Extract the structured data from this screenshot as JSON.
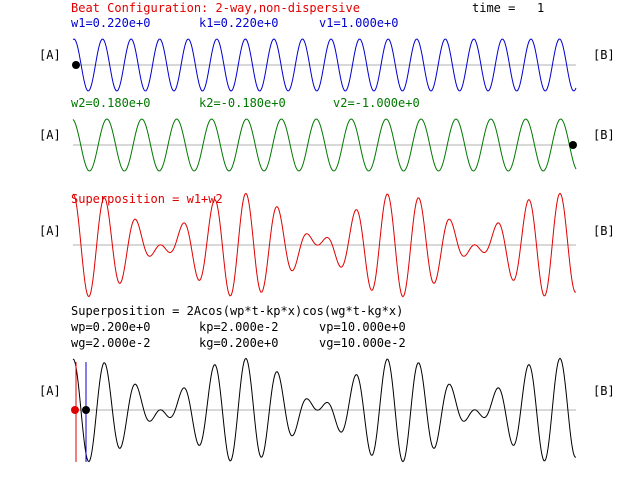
{
  "header": {
    "title": "Beat Configuration: 2-way,non-dispersive",
    "time_label": "time =   1"
  },
  "wave1": {
    "params": [
      "w1=0.220e+0",
      "k1=0.220e+0",
      "v1=1.000e+0"
    ],
    "left_label": "[A]",
    "right_label": "[B]"
  },
  "wave2": {
    "params": [
      "w2=0.180e+0",
      "k2=-0.180e+0",
      "v2=-1.000e+0"
    ],
    "left_label": "[A]",
    "right_label": "[B]"
  },
  "superposition": {
    "title": "Superposition = w1+w2",
    "left_label": "[A]",
    "right_label": "[B]"
  },
  "envelope": {
    "formula": "Superposition = 2Acos(wp*t-kp*x)cos(wg*t-kg*x)",
    "row1": [
      "wp=0.200e+0",
      "kp=2.000e-2",
      "vp=10.000e+0"
    ],
    "row2": [
      "wg=2.000e-2",
      "kg=0.200e+0",
      "vg=10.000e-2"
    ],
    "left_label": "[A]",
    "right_label": "[B]"
  },
  "colors": {
    "wave1": "#0000d0",
    "wave2": "#007800",
    "superposition": "#e00000",
    "envelope": "#000000",
    "axis": "#b0b0b0"
  }
}
